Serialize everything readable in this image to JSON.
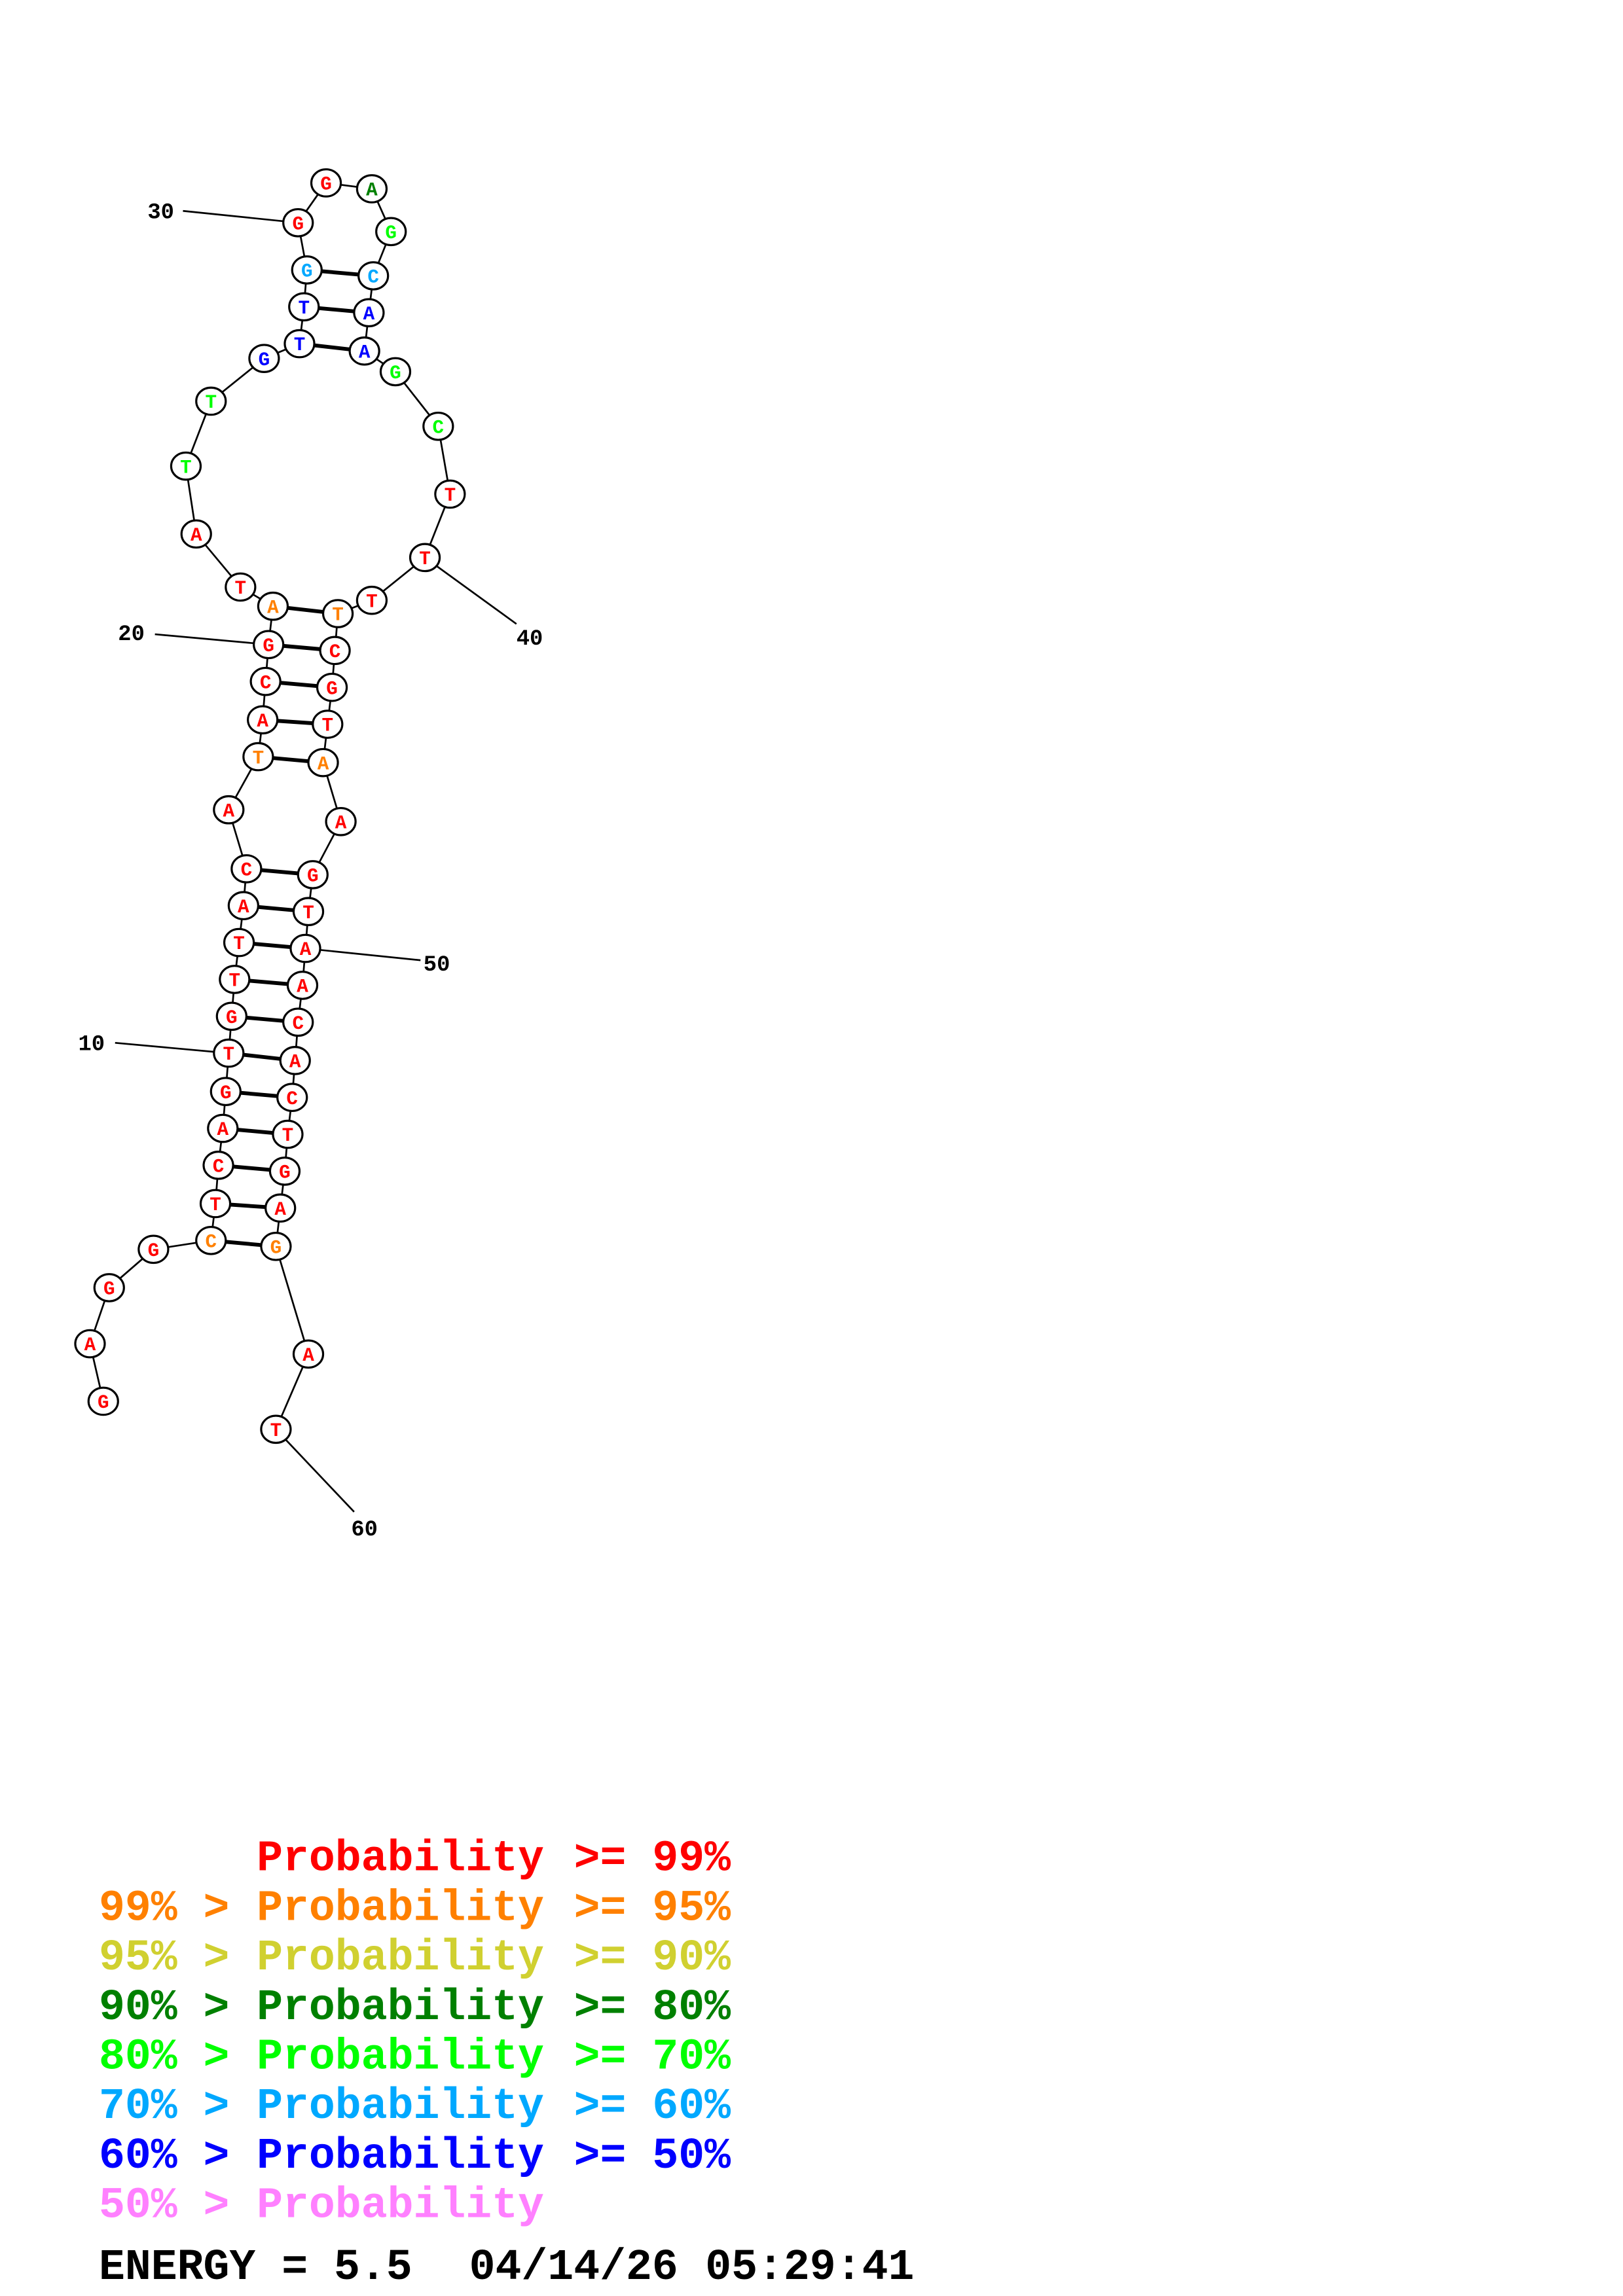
{
  "diagram": {
    "type": "rna-secondary-structure",
    "sequence": [
      {
        "n": 1,
        "base": "G",
        "p": 0
      },
      {
        "n": 2,
        "base": "A",
        "p": 0
      },
      {
        "n": 3,
        "base": "G",
        "p": 0
      },
      {
        "n": 4,
        "base": "G",
        "p": 0
      },
      {
        "n": 5,
        "base": "C",
        "p": 1
      },
      {
        "n": 6,
        "base": "T",
        "p": 0
      },
      {
        "n": 7,
        "base": "C",
        "p": 0
      },
      {
        "n": 8,
        "base": "A",
        "p": 0
      },
      {
        "n": 9,
        "base": "G",
        "p": 0
      },
      {
        "n": 10,
        "base": "T",
        "p": 0
      },
      {
        "n": 11,
        "base": "G",
        "p": 0
      },
      {
        "n": 12,
        "base": "T",
        "p": 0
      },
      {
        "n": 13,
        "base": "T",
        "p": 0
      },
      {
        "n": 14,
        "base": "A",
        "p": 0
      },
      {
        "n": 15,
        "base": "C",
        "p": 0
      },
      {
        "n": 16,
        "base": "A",
        "p": 0
      },
      {
        "n": 17,
        "base": "T",
        "p": 1
      },
      {
        "n": 18,
        "base": "A",
        "p": 0
      },
      {
        "n": 19,
        "base": "C",
        "p": 0
      },
      {
        "n": 20,
        "base": "G",
        "p": 0
      },
      {
        "n": 21,
        "base": "A",
        "p": 1
      },
      {
        "n": 22,
        "base": "T",
        "p": 0
      },
      {
        "n": 23,
        "base": "A",
        "p": 0
      },
      {
        "n": 24,
        "base": "T",
        "p": 4
      },
      {
        "n": 25,
        "base": "T",
        "p": 4
      },
      {
        "n": 26,
        "base": "G",
        "p": 6
      },
      {
        "n": 27,
        "base": "T",
        "p": 6
      },
      {
        "n": 28,
        "base": "T",
        "p": 6
      },
      {
        "n": 29,
        "base": "G",
        "p": 5
      },
      {
        "n": 30,
        "base": "G",
        "p": 0
      },
      {
        "n": 31,
        "base": "G",
        "p": 0
      },
      {
        "n": 32,
        "base": "A",
        "p": 3
      },
      {
        "n": 33,
        "base": "G",
        "p": 4
      },
      {
        "n": 34,
        "base": "C",
        "p": 5
      },
      {
        "n": 35,
        "base": "A",
        "p": 6
      },
      {
        "n": 36,
        "base": "A",
        "p": 6
      },
      {
        "n": 37,
        "base": "G",
        "p": 4
      },
      {
        "n": 38,
        "base": "C",
        "p": 4
      },
      {
        "n": 39,
        "base": "T",
        "p": 0
      },
      {
        "n": 40,
        "base": "T",
        "p": 0
      },
      {
        "n": 41,
        "base": "T",
        "p": 0
      },
      {
        "n": 42,
        "base": "T",
        "p": 1
      },
      {
        "n": 43,
        "base": "C",
        "p": 0
      },
      {
        "n": 44,
        "base": "G",
        "p": 0
      },
      {
        "n": 45,
        "base": "T",
        "p": 0
      },
      {
        "n": 46,
        "base": "A",
        "p": 1
      },
      {
        "n": 47,
        "base": "A",
        "p": 0
      },
      {
        "n": 48,
        "base": "G",
        "p": 0
      },
      {
        "n": 49,
        "base": "T",
        "p": 0
      },
      {
        "n": 50,
        "base": "A",
        "p": 0
      },
      {
        "n": 51,
        "base": "A",
        "p": 0
      },
      {
        "n": 52,
        "base": "C",
        "p": 0
      },
      {
        "n": 53,
        "base": "A",
        "p": 0
      },
      {
        "n": 54,
        "base": "C",
        "p": 0
      },
      {
        "n": 55,
        "base": "T",
        "p": 0
      },
      {
        "n": 56,
        "base": "G",
        "p": 0
      },
      {
        "n": 57,
        "base": "A",
        "p": 0
      },
      {
        "n": 58,
        "base": "G",
        "p": 1
      },
      {
        "n": 59,
        "base": "A",
        "p": 0
      },
      {
        "n": 60,
        "base": "T",
        "p": 0
      }
    ],
    "pairs": [
      [
        5,
        58
      ],
      [
        6,
        57
      ],
      [
        7,
        56
      ],
      [
        8,
        55
      ],
      [
        9,
        54
      ],
      [
        10,
        53
      ],
      [
        11,
        52
      ],
      [
        12,
        51
      ],
      [
        13,
        50
      ],
      [
        14,
        49
      ],
      [
        15,
        48
      ],
      [
        17,
        46
      ],
      [
        18,
        45
      ],
      [
        19,
        44
      ],
      [
        20,
        43
      ],
      [
        21,
        42
      ],
      [
        27,
        36
      ],
      [
        28,
        35
      ],
      [
        29,
        34
      ]
    ],
    "index_labels": [
      "10",
      "20",
      "30",
      "40",
      "50",
      "60"
    ]
  },
  "legend": {
    "rows": [
      {
        "left": "",
        "mid": "Probability",
        "right": ">= 99%",
        "color": "#ff0000"
      },
      {
        "left": "99% >",
        "mid": "Probability",
        "right": ">= 95%",
        "color": "#ff8000"
      },
      {
        "left": "95% >",
        "mid": "Probability",
        "right": ">= 90%",
        "color": "#d0d030"
      },
      {
        "left": "90% >",
        "mid": "Probability",
        "right": ">= 80%",
        "color": "#008000"
      },
      {
        "left": "80% >",
        "mid": "Probability",
        "right": ">= 70%",
        "color": "#00ff00"
      },
      {
        "left": "70% >",
        "mid": "Probability",
        "right": ">= 60%",
        "color": "#00a8ff"
      },
      {
        "left": "60% >",
        "mid": "Probability",
        "right": ">= 50%",
        "color": "#0000ff"
      },
      {
        "left": "50% >",
        "mid": "Probability",
        "right": "",
        "color": "#ff80ff"
      }
    ]
  },
  "footer": {
    "energy": "ENERGY = 5.5",
    "date": "04/14/26",
    "time": "05:29:41"
  }
}
